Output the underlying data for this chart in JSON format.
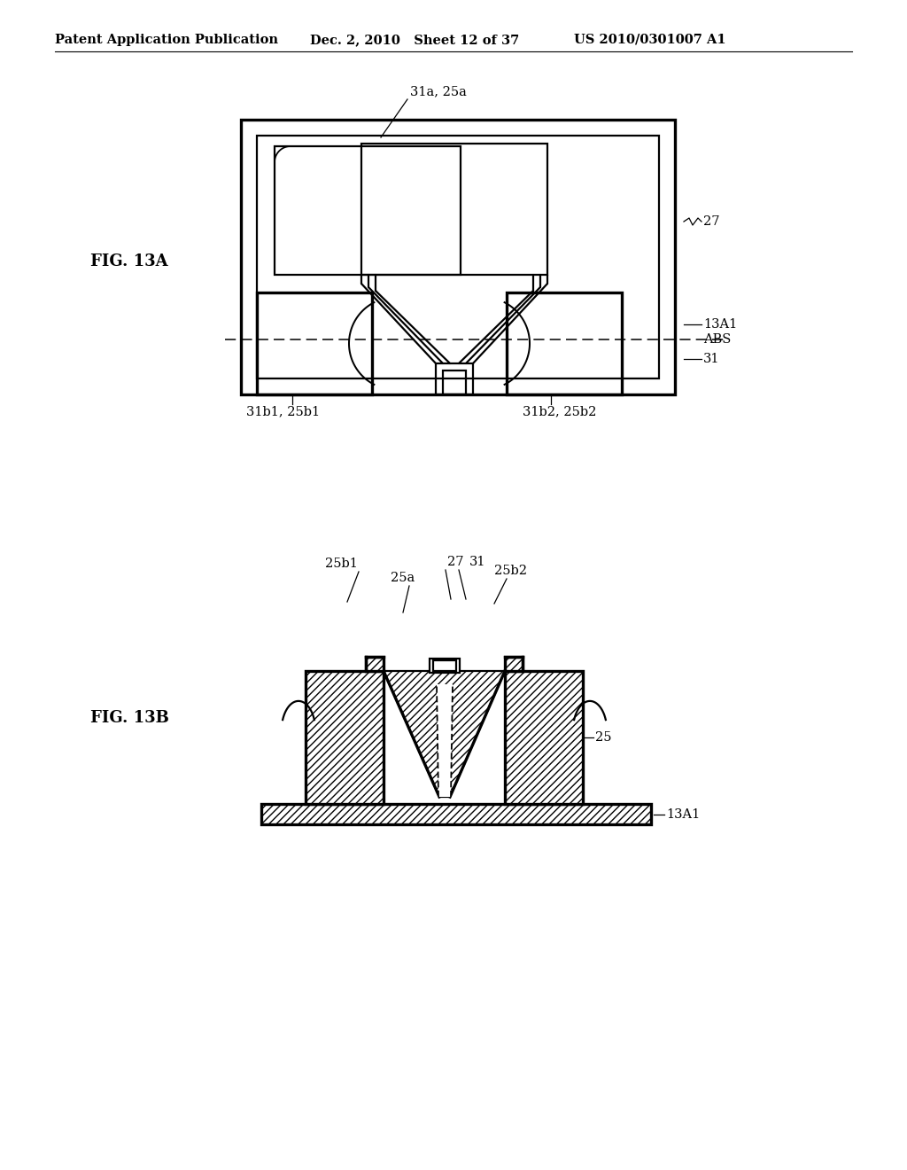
{
  "bg_color": "#ffffff",
  "line_color": "#000000",
  "header_left": "Patent Application Publication",
  "header_mid": "Dec. 2, 2010   Sheet 12 of 37",
  "header_right": "US 2010/0301007 A1",
  "fig13a_label": "FIG. 13A",
  "fig13b_label": "FIG. 13B",
  "label_31a_25a": "31a, 25a",
  "label_27": "27",
  "label_13A1_top": "13A1",
  "label_ABS": "ABS",
  "label_31_top": "31",
  "label_31b1_25b1": "31b1, 25b1",
  "label_31b2_25b2": "31b2, 25b2",
  "label_25a_b": "25a",
  "label_25b1_b": "25b1",
  "label_27_b": "27",
  "label_31_b": "31",
  "label_25b2_b": "25b2",
  "label_25_b": "25",
  "label_13A1_b": "13A1"
}
